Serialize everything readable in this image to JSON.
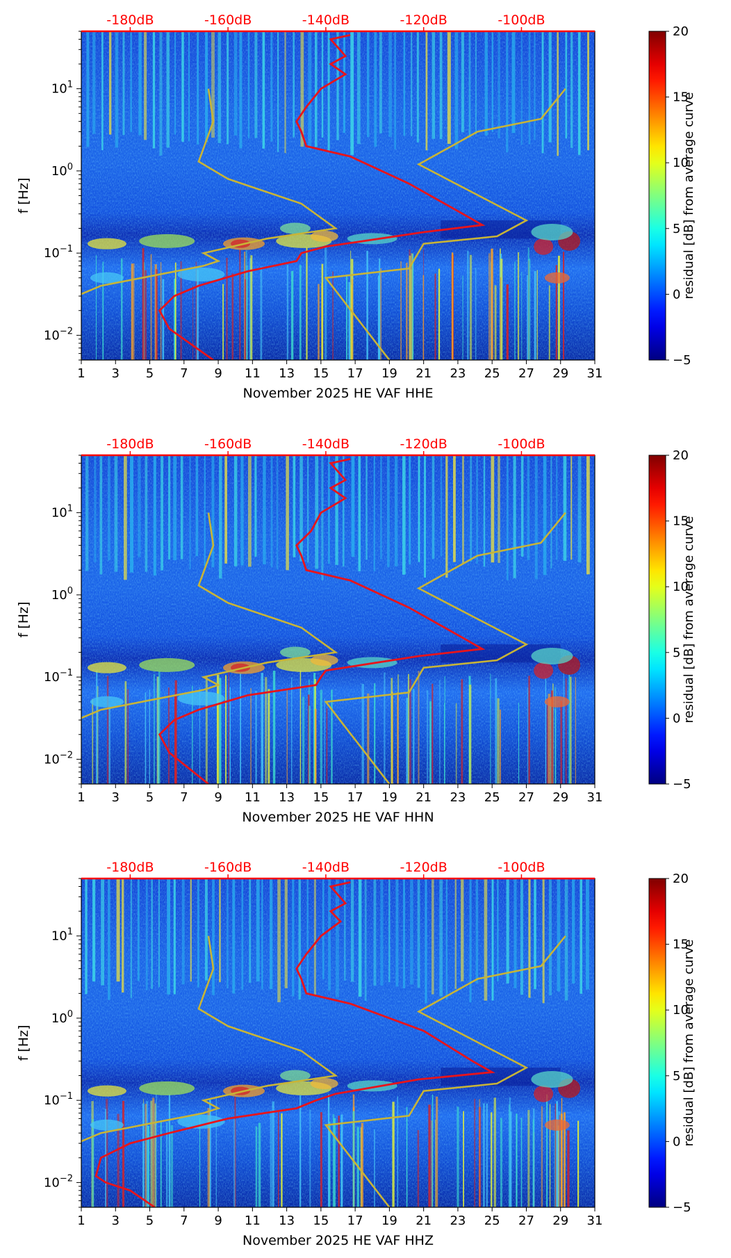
{
  "figure": {
    "panel_count": 3,
    "shared": {
      "type": "heatmap",
      "y_axis_label": "f [Hz]",
      "y_scale": "log",
      "y_range_hz": [
        0.005,
        50
      ],
      "y_ticks": [
        {
          "value": 0.01,
          "base": "10",
          "exp": "−2"
        },
        {
          "value": 0.1,
          "base": "10",
          "exp": "−1"
        },
        {
          "value": 1,
          "base": "10",
          "exp": "0"
        },
        {
          "value": 10,
          "base": "10",
          "exp": "1"
        }
      ],
      "x_range_day": [
        1,
        31
      ],
      "x_ticks": [
        "1",
        "3",
        "5",
        "7",
        "9",
        "11",
        "13",
        "15",
        "17",
        "19",
        "21",
        "23",
        "25",
        "27",
        "29",
        "31"
      ],
      "top_axis_ticks": [
        "-180dB",
        "-160dB",
        "-140dB",
        "-120dB",
        "-100dB"
      ],
      "top_axis_values_db": [
        -180,
        -160,
        -140,
        -120,
        -100
      ],
      "colorbar_label": "residual [dB] from average curve",
      "colorbar_range": [
        -5,
        20
      ],
      "colorbar_ticks": [
        "20",
        "15",
        "10",
        "5",
        "0",
        "−5"
      ],
      "colormap": "jet",
      "colors": {
        "curve_red": "#e8141b",
        "noise_model": "#c8b437",
        "top_ticks": "#ff0000"
      }
    }
  },
  "chart_data": [
    {
      "type": "heatmap",
      "xlabel": "November 2025 HE VAF  HHE",
      "ylabel": "f [Hz]",
      "xlim": [
        1,
        31
      ],
      "ylim": [
        0.005,
        50
      ],
      "y_scale": "log",
      "colorbar": {
        "label": "residual [dB] from average curve",
        "range": [
          -5,
          20
        ]
      },
      "top_axis": {
        "ticks": [
          "-180dB",
          "-160dB",
          "-140dB",
          "-120dB",
          "-100dB"
        ]
      },
      "average_curve_db": [
        [
          -135,
          45
        ],
        [
          -139,
          40
        ],
        [
          -136,
          25
        ],
        [
          -139,
          20
        ],
        [
          -136,
          15
        ],
        [
          -141,
          10
        ],
        [
          -144,
          6
        ],
        [
          -146,
          4
        ],
        [
          -145,
          3
        ],
        [
          -144,
          2
        ],
        [
          -135,
          1.5
        ],
        [
          -123,
          0.7
        ],
        [
          -112,
          0.3
        ],
        [
          -108,
          0.22
        ],
        [
          -120,
          0.18
        ],
        [
          -140,
          0.12
        ],
        [
          -145,
          0.1
        ],
        [
          -146,
          0.08
        ],
        [
          -156,
          0.06
        ],
        [
          -166,
          0.04
        ],
        [
          -171,
          0.03
        ],
        [
          -174,
          0.02
        ],
        [
          -172,
          0.012
        ],
        [
          -163,
          0.005
        ]
      ],
      "noise_model_low_db": [
        [
          -164,
          10
        ],
        [
          -163,
          4
        ],
        [
          -166,
          1.3
        ],
        [
          -160,
          0.8
        ],
        [
          -145,
          0.4
        ],
        [
          -138,
          0.2
        ],
        [
          -152,
          0.15
        ],
        [
          -165,
          0.1
        ],
        [
          -162,
          0.08
        ],
        [
          -165,
          0.07
        ],
        [
          -186,
          0.04
        ],
        [
          -191,
          0.03
        ],
        [
          -193,
          0.02
        ],
        [
          -193,
          0.013
        ],
        [
          -192,
          0.01
        ],
        [
          -190,
          0.005
        ]
      ],
      "noise_model_high_db": [
        [
          -91,
          10
        ],
        [
          -96,
          4.3
        ],
        [
          -109,
          3
        ],
        [
          -121,
          1.2
        ],
        [
          -99,
          0.25
        ],
        [
          -105,
          0.16
        ],
        [
          -120,
          0.13
        ],
        [
          -123,
          0.065
        ],
        [
          -140,
          0.05
        ],
        [
          -127,
          0.005
        ]
      ]
    },
    {
      "type": "heatmap",
      "xlabel": "November 2025 HE VAF  HHN",
      "ylabel": "f [Hz]",
      "xlim": [
        1,
        31
      ],
      "ylim": [
        0.005,
        50
      ],
      "y_scale": "log",
      "colorbar": {
        "label": "residual [dB] from average curve",
        "range": [
          -5,
          20
        ]
      },
      "top_axis": {
        "ticks": [
          "-180dB",
          "-160dB",
          "-140dB",
          "-120dB",
          "-100dB"
        ]
      },
      "average_curve_db": [
        [
          -135,
          45
        ],
        [
          -139,
          40
        ],
        [
          -136,
          25
        ],
        [
          -139,
          20
        ],
        [
          -136,
          15
        ],
        [
          -141,
          10
        ],
        [
          -143,
          6
        ],
        [
          -146,
          4
        ],
        [
          -145,
          3
        ],
        [
          -144,
          2
        ],
        [
          -135,
          1.5
        ],
        [
          -123,
          0.7
        ],
        [
          -112,
          0.3
        ],
        [
          -108,
          0.22
        ],
        [
          -121,
          0.18
        ],
        [
          -140,
          0.12
        ],
        [
          -141,
          0.1
        ],
        [
          -142,
          0.08
        ],
        [
          -156,
          0.06
        ],
        [
          -166,
          0.04
        ],
        [
          -171,
          0.03
        ],
        [
          -174,
          0.02
        ],
        [
          -172,
          0.012
        ],
        [
          -164,
          0.005
        ]
      ],
      "noise_model_low_db": [
        [
          -164,
          10
        ],
        [
          -163,
          4
        ],
        [
          -166,
          1.3
        ],
        [
          -160,
          0.8
        ],
        [
          -145,
          0.4
        ],
        [
          -138,
          0.2
        ],
        [
          -152,
          0.15
        ],
        [
          -165,
          0.1
        ],
        [
          -162,
          0.08
        ],
        [
          -165,
          0.07
        ],
        [
          -186,
          0.04
        ],
        [
          -191,
          0.03
        ],
        [
          -193,
          0.02
        ],
        [
          -193,
          0.013
        ],
        [
          -192,
          0.01
        ],
        [
          -190,
          0.005
        ]
      ],
      "noise_model_high_db": [
        [
          -91,
          10
        ],
        [
          -96,
          4.3
        ],
        [
          -109,
          3
        ],
        [
          -121,
          1.2
        ],
        [
          -99,
          0.25
        ],
        [
          -105,
          0.16
        ],
        [
          -120,
          0.13
        ],
        [
          -123,
          0.065
        ],
        [
          -140,
          0.05
        ],
        [
          -127,
          0.005
        ]
      ]
    },
    {
      "type": "heatmap",
      "xlabel": "November 2025 HE VAF  HHZ",
      "ylabel": "f [Hz]",
      "xlim": [
        1,
        31
      ],
      "ylim": [
        0.005,
        50
      ],
      "y_scale": "log",
      "colorbar": {
        "label": "residual [dB] from average curve",
        "range": [
          -5,
          20
        ]
      },
      "top_axis": {
        "ticks": [
          "-180dB",
          "-160dB",
          "-140dB",
          "-120dB",
          "-100dB"
        ]
      },
      "average_curve_db": [
        [
          -135,
          45
        ],
        [
          -139,
          40
        ],
        [
          -136,
          25
        ],
        [
          -139,
          20
        ],
        [
          -137,
          15
        ],
        [
          -141,
          10
        ],
        [
          -144,
          6
        ],
        [
          -146,
          4
        ],
        [
          -145,
          3
        ],
        [
          -144,
          2
        ],
        [
          -135,
          1.5
        ],
        [
          -120,
          0.7
        ],
        [
          -110,
          0.3
        ],
        [
          -106,
          0.22
        ],
        [
          -121,
          0.18
        ],
        [
          -138,
          0.12
        ],
        [
          -142,
          0.1
        ],
        [
          -146,
          0.08
        ],
        [
          -160,
          0.06
        ],
        [
          -172,
          0.04
        ],
        [
          -180,
          0.03
        ],
        [
          -186,
          0.02
        ],
        [
          -187,
          0.012
        ],
        [
          -185,
          0.01
        ],
        [
          -180,
          0.008
        ],
        [
          -175,
          0.005
        ]
      ],
      "noise_model_low_db": [
        [
          -164,
          10
        ],
        [
          -163,
          4
        ],
        [
          -166,
          1.3
        ],
        [
          -160,
          0.8
        ],
        [
          -145,
          0.4
        ],
        [
          -138,
          0.2
        ],
        [
          -152,
          0.15
        ],
        [
          -165,
          0.1
        ],
        [
          -162,
          0.08
        ],
        [
          -165,
          0.07
        ],
        [
          -186,
          0.04
        ],
        [
          -191,
          0.03
        ],
        [
          -193,
          0.02
        ],
        [
          -193,
          0.013
        ],
        [
          -192,
          0.01
        ],
        [
          -190,
          0.005
        ]
      ],
      "noise_model_high_db": [
        [
          -91,
          10
        ],
        [
          -96,
          4.3
        ],
        [
          -109,
          3
        ],
        [
          -121,
          1.2
        ],
        [
          -99,
          0.25
        ],
        [
          -105,
          0.16
        ],
        [
          -120,
          0.13
        ],
        [
          -123,
          0.065
        ],
        [
          -140,
          0.05
        ],
        [
          -127,
          0.005
        ]
      ]
    }
  ]
}
